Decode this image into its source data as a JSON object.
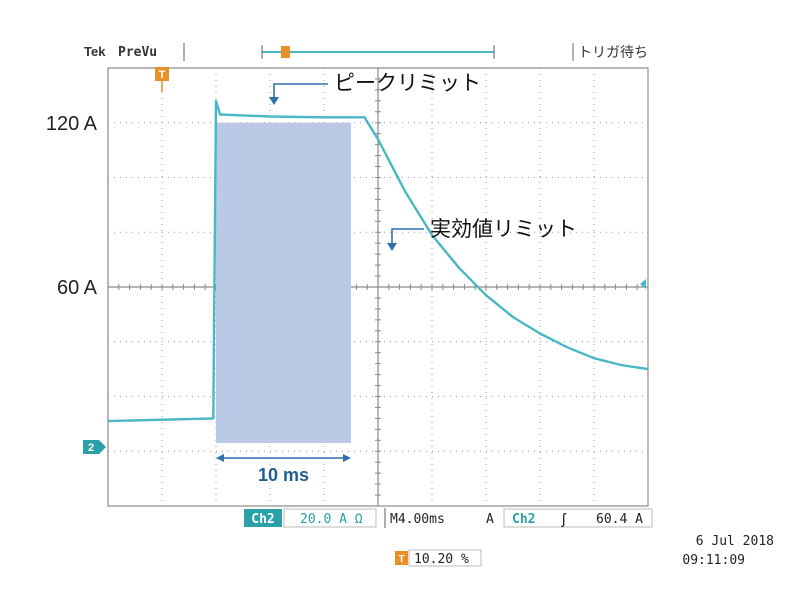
{
  "header": {
    "brand": "Tek",
    "mode": "PreVu",
    "trigger_status": "トリガ待ち",
    "trigger_marker": "T"
  },
  "channel_marker": "2",
  "colors": {
    "trace": "#49b8c4",
    "shade": "#b9c9e6",
    "grid": "#9a9a9a",
    "annotation": "#2f6fae",
    "badge": "#2aa0a8",
    "trigger": "#e8912a"
  },
  "annotations": {
    "peak_limit": "ピークリミット",
    "rms_limit": "実効値リミット",
    "duration": "10 ms"
  },
  "status_bar": {
    "channel": "Ch2",
    "scale": "20.0 A Ω",
    "timebase": "M4.00ms",
    "trigger_source_prefix": "A",
    "trigger_channel": "Ch2",
    "trigger_slope": "ʃ",
    "trigger_level": "60.4 A",
    "trigger_position_icon": "T",
    "trigger_position": "10.20 %",
    "date": "6 Jul 2018",
    "time": "09:11:09"
  },
  "chart_data": {
    "type": "line",
    "title": "",
    "xlabel": "",
    "ylabel": "",
    "x_unit": "ms",
    "y_unit": "A",
    "xlim": [
      -8,
      32
    ],
    "ylim": [
      -20,
      140
    ],
    "y_tick_labels": [
      {
        "value": 120,
        "label": "120 A"
      },
      {
        "value": 60,
        "label": "60 A"
      }
    ],
    "shaded_interval": {
      "x_start": 0,
      "x_end": 10,
      "y_top": 120
    },
    "series": [
      {
        "x": [
          -8,
          -0.2,
          0,
          0.3,
          4,
          8,
          11,
          12,
          14,
          16,
          18,
          20,
          22,
          24,
          26,
          28,
          30,
          32
        ],
        "y": [
          11,
          12,
          128,
          123,
          122.3,
          122,
          122,
          114,
          95,
          79,
          67,
          57,
          49,
          43,
          38,
          34,
          31.5,
          30
        ]
      }
    ]
  }
}
